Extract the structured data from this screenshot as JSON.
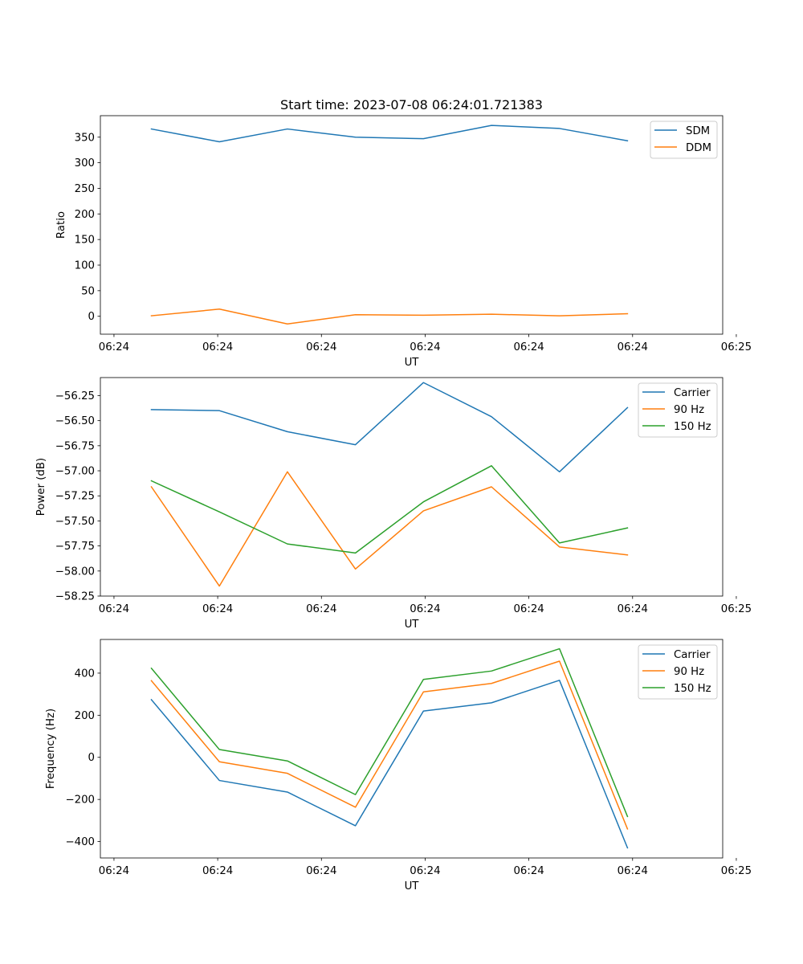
{
  "figure": {
    "title": "Start time: 2023-07-08 06:24:01.721383"
  },
  "colors": {
    "blue": "#1f77b4",
    "orange": "#ff7f0e",
    "green": "#2ca02c",
    "axis": "#000000",
    "legend_border": "#cccccc"
  },
  "chart_data": [
    {
      "type": "line",
      "title": "Start time: 2023-07-08 06:24:01.721383",
      "xlabel": "UT",
      "ylabel": "Ratio",
      "x": [
        1,
        2,
        3,
        4,
        5,
        6,
        7,
        8
      ],
      "xlim": [
        0.25,
        9.4
      ],
      "x_ticks": [
        0.45,
        1.975,
        3.5,
        5.025,
        6.55,
        8.075,
        9.6
      ],
      "x_tick_labels": [
        "06:24",
        "06:24",
        "06:24",
        "06:24",
        "06:24",
        "06:24",
        "06:25"
      ],
      "ylim": [
        -35,
        392
      ],
      "y_ticks": [
        0,
        50,
        100,
        150,
        200,
        250,
        300,
        350
      ],
      "y_tick_labels": [
        "0",
        "50",
        "100",
        "150",
        "200",
        "250",
        "300",
        "350"
      ],
      "legend_position": "top-right",
      "series": [
        {
          "name": "SDM",
          "color": "#1f77b4",
          "values": [
            366,
            341,
            366,
            350,
            347,
            373,
            367,
            343
          ]
        },
        {
          "name": "DDM",
          "color": "#ff7f0e",
          "values": [
            1,
            14,
            -15,
            3,
            2,
            4,
            1,
            5
          ]
        }
      ]
    },
    {
      "type": "line",
      "title": "",
      "xlabel": "UT",
      "ylabel": "Power (dB)",
      "x": [
        1,
        2,
        3,
        4,
        5,
        6,
        7,
        8
      ],
      "xlim": [
        0.25,
        9.4
      ],
      "x_ticks": [
        0.45,
        1.975,
        3.5,
        5.025,
        6.55,
        8.075,
        9.6
      ],
      "x_tick_labels": [
        "06:24",
        "06:24",
        "06:24",
        "06:24",
        "06:24",
        "06:24",
        "06:25"
      ],
      "ylim": [
        -58.25,
        -56.07
      ],
      "y_ticks": [
        -58.25,
        -58.0,
        -57.75,
        -57.5,
        -57.25,
        -57.0,
        -56.75,
        -56.5,
        -56.25
      ],
      "y_tick_labels": [
        "−58.25",
        "−58.00",
        "−57.75",
        "−57.50",
        "−57.25",
        "−57.00",
        "−56.75",
        "−56.50",
        "−56.25"
      ],
      "legend_position": "top-right",
      "series": [
        {
          "name": "Carrier",
          "color": "#1f77b4",
          "values": [
            -56.39,
            -56.4,
            -56.61,
            -56.74,
            -56.12,
            -56.46,
            -57.01,
            -56.37
          ]
        },
        {
          "name": "90 Hz",
          "color": "#ff7f0e",
          "values": [
            -57.16,
            -58.15,
            -57.01,
            -57.98,
            -57.4,
            -57.16,
            -57.76,
            -57.84
          ]
        },
        {
          "name": "150 Hz",
          "color": "#2ca02c",
          "values": [
            -57.1,
            -57.41,
            -57.73,
            -57.82,
            -57.31,
            -56.95,
            -57.72,
            -57.57
          ]
        }
      ]
    },
    {
      "type": "line",
      "title": "",
      "xlabel": "UT",
      "ylabel": "Frequency (Hz)",
      "x": [
        1,
        2,
        3,
        4,
        5,
        6,
        7,
        8
      ],
      "xlim": [
        0.25,
        9.4
      ],
      "x_ticks": [
        0.45,
        1.975,
        3.5,
        5.025,
        6.55,
        8.075,
        9.6
      ],
      "x_tick_labels": [
        "06:24",
        "06:24",
        "06:24",
        "06:24",
        "06:24",
        "06:24",
        "06:25"
      ],
      "ylim": [
        -478,
        560
      ],
      "y_ticks": [
        -400,
        -200,
        0,
        200,
        400
      ],
      "y_tick_labels": [
        "−400",
        "−200",
        "0",
        "200",
        "400"
      ],
      "legend_position": "top-right",
      "series": [
        {
          "name": "Carrier",
          "color": "#1f77b4",
          "values": [
            274,
            -110,
            -165,
            -325,
            220,
            259,
            366,
            -430
          ]
        },
        {
          "name": "90 Hz",
          "color": "#ff7f0e",
          "values": [
            364,
            -21,
            -76,
            -237,
            311,
            351,
            457,
            -340
          ]
        },
        {
          "name": "150 Hz",
          "color": "#2ca02c",
          "values": [
            423,
            37,
            -17,
            -177,
            370,
            410,
            516,
            -281
          ]
        }
      ]
    }
  ]
}
